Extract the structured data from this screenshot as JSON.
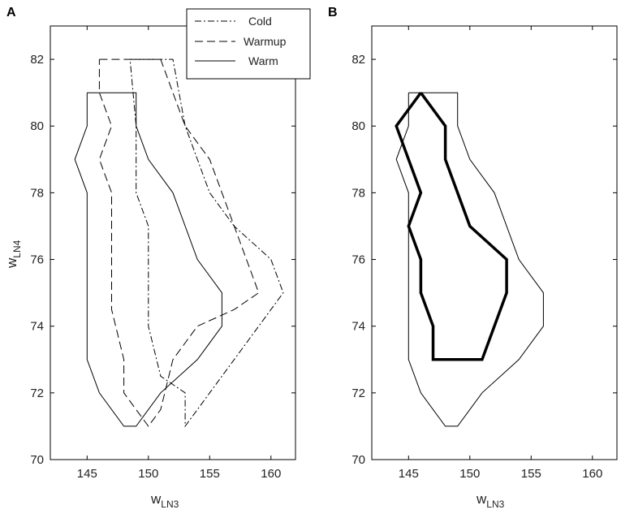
{
  "chart_data": [
    {
      "type": "line",
      "panel": "A",
      "xlabel": "w",
      "xlabel_sub": "LN3",
      "ylabel": "w",
      "ylabel_sub": "LN4",
      "xlim": [
        142,
        162
      ],
      "ylim": [
        70,
        83
      ],
      "xticks": [
        145,
        150,
        155,
        160
      ],
      "yticks": [
        70,
        72,
        74,
        76,
        78,
        80,
        82
      ],
      "grid": false,
      "legend": {
        "position": "top-right",
        "entries": [
          "Cold",
          "Warmup",
          "Warm"
        ]
      },
      "series": [
        {
          "name": "Cold",
          "style": "dash-dot",
          "color": "#000000",
          "points": [
            [
              148.5,
              82
            ],
            [
              152,
              82
            ],
            [
              153,
              80
            ],
            [
              155,
              78
            ],
            [
              157,
              77
            ],
            [
              160,
              76
            ],
            [
              161,
              75
            ],
            [
              159,
              74
            ],
            [
              157,
              73
            ],
            [
              155,
              72
            ],
            [
              154,
              71.5
            ],
            [
              153,
              71
            ],
            [
              153,
              72
            ],
            [
              151,
              72.5
            ],
            [
              150,
              74
            ],
            [
              150,
              77
            ],
            [
              149,
              78
            ],
            [
              149,
              80
            ],
            [
              148.5,
              82
            ]
          ]
        },
        {
          "name": "Warmup",
          "style": "dashed",
          "color": "#000000",
          "points": [
            [
              146,
              82
            ],
            [
              151,
              82
            ],
            [
              153,
              80
            ],
            [
              155,
              79
            ],
            [
              158,
              76
            ],
            [
              159,
              75
            ],
            [
              157,
              74.5
            ],
            [
              154,
              74
            ],
            [
              152,
              73
            ],
            [
              151,
              71.5
            ],
            [
              150,
              71
            ],
            [
              149,
              71.5
            ],
            [
              148,
              72
            ],
            [
              148,
              73
            ],
            [
              147,
              74.5
            ],
            [
              147,
              78
            ],
            [
              146,
              79
            ],
            [
              147,
              80
            ],
            [
              146,
              81
            ],
            [
              146,
              82
            ]
          ]
        },
        {
          "name": "Warm",
          "style": "solid",
          "color": "#000000",
          "points": [
            [
              145,
              81
            ],
            [
              149,
              81
            ],
            [
              149,
              80
            ],
            [
              150,
              79
            ],
            [
              152,
              78
            ],
            [
              154,
              76
            ],
            [
              156,
              75
            ],
            [
              156,
              74
            ],
            [
              154,
              73
            ],
            [
              151,
              72
            ],
            [
              149,
              71
            ],
            [
              148,
              71
            ],
            [
              146,
              72
            ],
            [
              145,
              73
            ],
            [
              145,
              76
            ],
            [
              145,
              78
            ],
            [
              144,
              79
            ],
            [
              145,
              80
            ],
            [
              145,
              81
            ]
          ]
        }
      ]
    },
    {
      "type": "line",
      "panel": "B",
      "xlabel": "w",
      "xlabel_sub": "LN3",
      "ylabel": "",
      "xlim": [
        142,
        162
      ],
      "ylim": [
        70,
        83
      ],
      "xticks": [
        145,
        150,
        155,
        160
      ],
      "yticks": [
        70,
        72,
        74,
        76,
        78,
        80,
        82
      ],
      "grid": false,
      "series": [
        {
          "style": "solid-thin",
          "color": "#000000",
          "points": [
            [
              145,
              81
            ],
            [
              149,
              81
            ],
            [
              149,
              80
            ],
            [
              150,
              79
            ],
            [
              152,
              78
            ],
            [
              154,
              76
            ],
            [
              156,
              75
            ],
            [
              156,
              74
            ],
            [
              154,
              73
            ],
            [
              151,
              72
            ],
            [
              149,
              71
            ],
            [
              148,
              71
            ],
            [
              146,
              72
            ],
            [
              145,
              73
            ],
            [
              145,
              76
            ],
            [
              145,
              78
            ],
            [
              144,
              79
            ],
            [
              145,
              80
            ],
            [
              145,
              81
            ]
          ]
        },
        {
          "style": "solid-thick",
          "color": "#000000",
          "points": [
            [
              146,
              81
            ],
            [
              148,
              80
            ],
            [
              148,
              79
            ],
            [
              150,
              77
            ],
            [
              153,
              76
            ],
            [
              153,
              75
            ],
            [
              151,
              73
            ],
            [
              147,
              73
            ],
            [
              147,
              74
            ],
            [
              146,
              75
            ],
            [
              146,
              76
            ],
            [
              145,
              77
            ],
            [
              146,
              78
            ],
            [
              145,
              79
            ],
            [
              144,
              80
            ],
            [
              146,
              81
            ]
          ]
        }
      ]
    }
  ]
}
